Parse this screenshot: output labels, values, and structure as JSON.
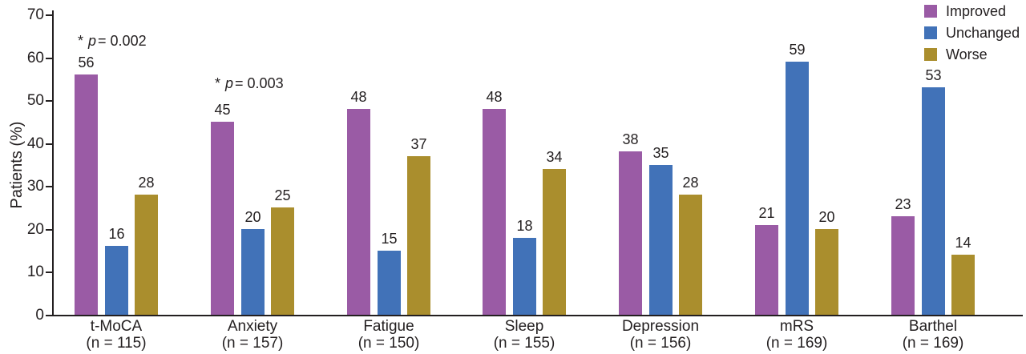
{
  "chart_data": {
    "type": "bar",
    "title": "",
    "xlabel": "",
    "ylabel": "Patients (%)",
    "ylim": [
      0,
      70
    ],
    "ytick_step": 10,
    "grid": false,
    "legend_position": "top-right",
    "categories": [
      {
        "label": "t-MoCA",
        "n": "(n = 115)"
      },
      {
        "label": "Anxiety",
        "n": "(n = 157)"
      },
      {
        "label": "Fatigue",
        "n": "(n = 150)"
      },
      {
        "label": "Sleep",
        "n": "(n = 155)"
      },
      {
        "label": "Depression",
        "n": "(n = 156)"
      },
      {
        "label": "mRS",
        "n": "(n = 169)"
      },
      {
        "label": "Barthel",
        "n": "(n = 169)"
      }
    ],
    "series": [
      {
        "name": "Improved",
        "color": "#9A5BA5",
        "values": [
          56,
          45,
          48,
          48,
          38,
          21,
          23
        ]
      },
      {
        "name": "Unchanged",
        "color": "#4172B8",
        "values": [
          16,
          20,
          15,
          18,
          35,
          59,
          53
        ]
      },
      {
        "name": "Worse",
        "color": "#AA8E2D",
        "values": [
          28,
          25,
          37,
          34,
          28,
          20,
          14
        ]
      }
    ],
    "annotations": [
      {
        "group_index": 0,
        "star": "*",
        "var": "p",
        "rest": "= 0.002"
      },
      {
        "group_index": 1,
        "star": "*",
        "var": "p",
        "rest": "= 0.003"
      }
    ]
  },
  "colors": {
    "text": "#231F20",
    "axis": "#231F20",
    "background": "#FFFFFF"
  }
}
